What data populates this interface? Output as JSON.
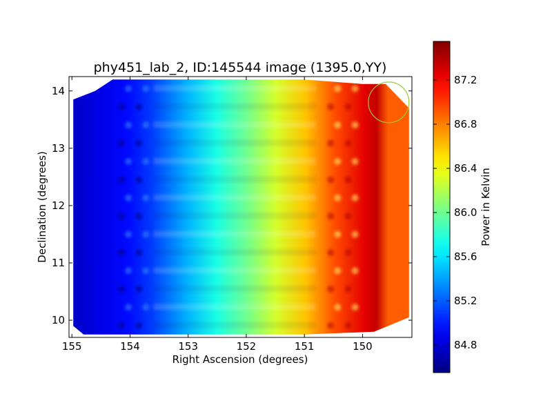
{
  "chart_data": {
    "type": "heatmap",
    "title": "phy451_lab_2, ID:145544 image (1395.0,YY)",
    "xlabel": "Right Ascension (degrees)",
    "ylabel": "Declination (degrees)",
    "xlim": [
      155.05,
      149.15
    ],
    "ylim": [
      9.7,
      14.25
    ],
    "x_ticks": [
      155,
      154,
      153,
      152,
      151,
      150
    ],
    "x_tick_labels": [
      "155",
      "154",
      "153",
      "152",
      "151",
      "150"
    ],
    "y_ticks": [
      10,
      11,
      12,
      13,
      14
    ],
    "y_tick_labels": [
      "10",
      "11",
      "12",
      "13",
      "14"
    ],
    "colorbar": {
      "label": "Power in Kelvin",
      "colormap": "jet",
      "vmin": 84.55,
      "vmax": 87.55,
      "ticks": [
        84.8,
        85.2,
        85.6,
        86.0,
        86.4,
        86.8,
        87.2
      ],
      "tick_labels": [
        "84.8",
        "85.2",
        "85.6",
        "86.0",
        "86.4",
        "86.8",
        "87.2"
      ]
    },
    "coverage": {
      "ra_min": 149.2,
      "ra_max": 155.0,
      "dec_min": 9.75,
      "dec_max": 14.2
    },
    "value_profile_by_ra": [
      {
        "ra": 155.0,
        "value": 84.75
      },
      {
        "ra": 154.5,
        "value": 84.85
      },
      {
        "ra": 154.0,
        "value": 84.95
      },
      {
        "ra": 153.6,
        "value": 85.1
      },
      {
        "ra": 153.0,
        "value": 85.45
      },
      {
        "ra": 152.5,
        "value": 85.75
      },
      {
        "ra": 152.0,
        "value": 86.0
      },
      {
        "ra": 151.5,
        "value": 86.3
      },
      {
        "ra": 151.0,
        "value": 86.6
      },
      {
        "ra": 150.5,
        "value": 86.95
      },
      {
        "ra": 150.0,
        "value": 87.25
      },
      {
        "ra": 149.8,
        "value": 87.35
      },
      {
        "ra": 149.6,
        "value": 86.9
      },
      {
        "ra": 149.2,
        "value": 86.9
      }
    ],
    "scan_stripe_count": 14,
    "marker": {
      "shape": "circle",
      "ra": 149.55,
      "dec": 13.8,
      "radius_deg": 0.35,
      "color": "#9acd32"
    },
    "grid": false
  }
}
